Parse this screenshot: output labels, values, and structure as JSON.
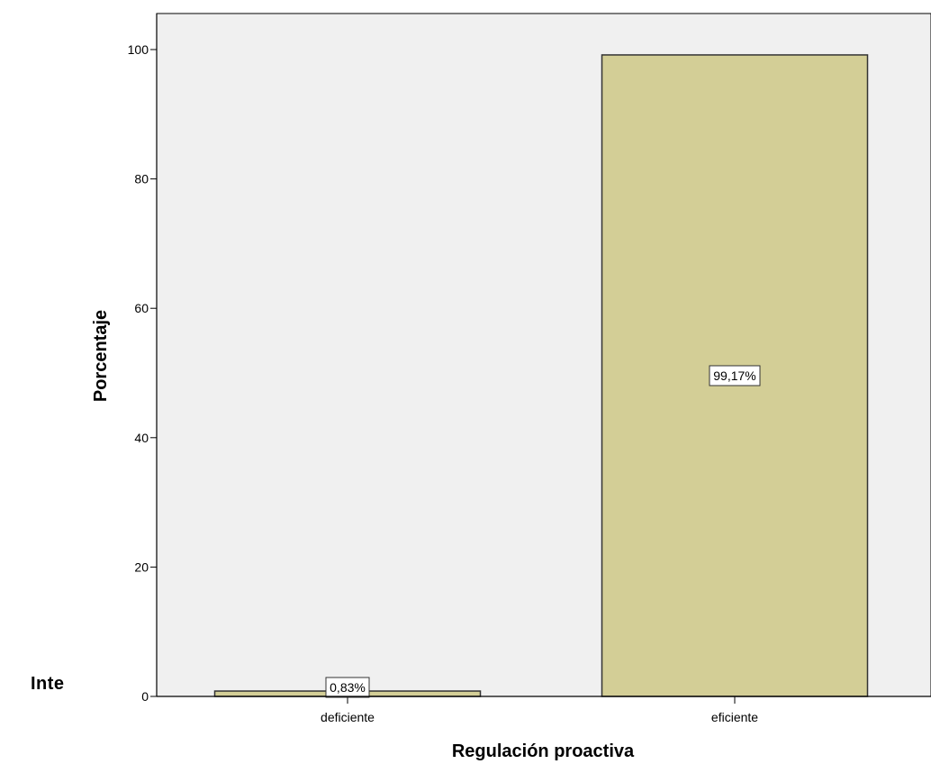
{
  "page": {
    "stray_text": "Inte"
  },
  "chart_data": {
    "type": "bar",
    "categories": [
      "deficiente",
      "eficiente"
    ],
    "values": [
      0.83,
      99.17
    ],
    "data_labels": [
      "0,83%",
      "99,17%"
    ],
    "xlabel": "Regulación proactiva",
    "ylabel": "Porcentaje",
    "ylim": [
      0,
      105
    ],
    "yticks": [
      0,
      20,
      40,
      60,
      80,
      100
    ],
    "grid": false,
    "legend": "none",
    "colors": {
      "bar_fill": "#d3ce96",
      "bar_stroke": "#333333",
      "plot_background": "#f0f0f0",
      "axis": "#000000"
    }
  }
}
